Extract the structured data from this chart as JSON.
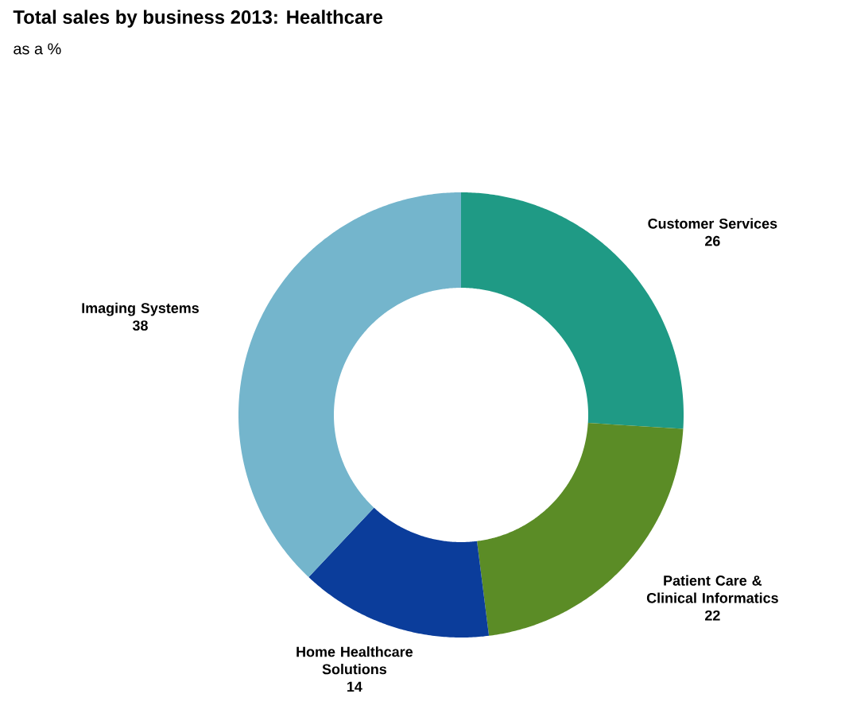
{
  "chart_data": {
    "type": "donut",
    "title": "Total sales by business 2013: Healthcare",
    "subtitle": "as a %",
    "categories": [
      "Customer Services",
      "Patient Care & Clinical Informatics",
      "Home Healthcare Solutions",
      "Imaging Systems"
    ],
    "values": [
      26,
      22,
      14,
      38
    ],
    "colors": [
      "#1f9a85",
      "#5b8c26",
      "#0b3d9b",
      "#74b5cc"
    ],
    "value_labels": [
      "26",
      "22",
      "14",
      "38"
    ]
  }
}
